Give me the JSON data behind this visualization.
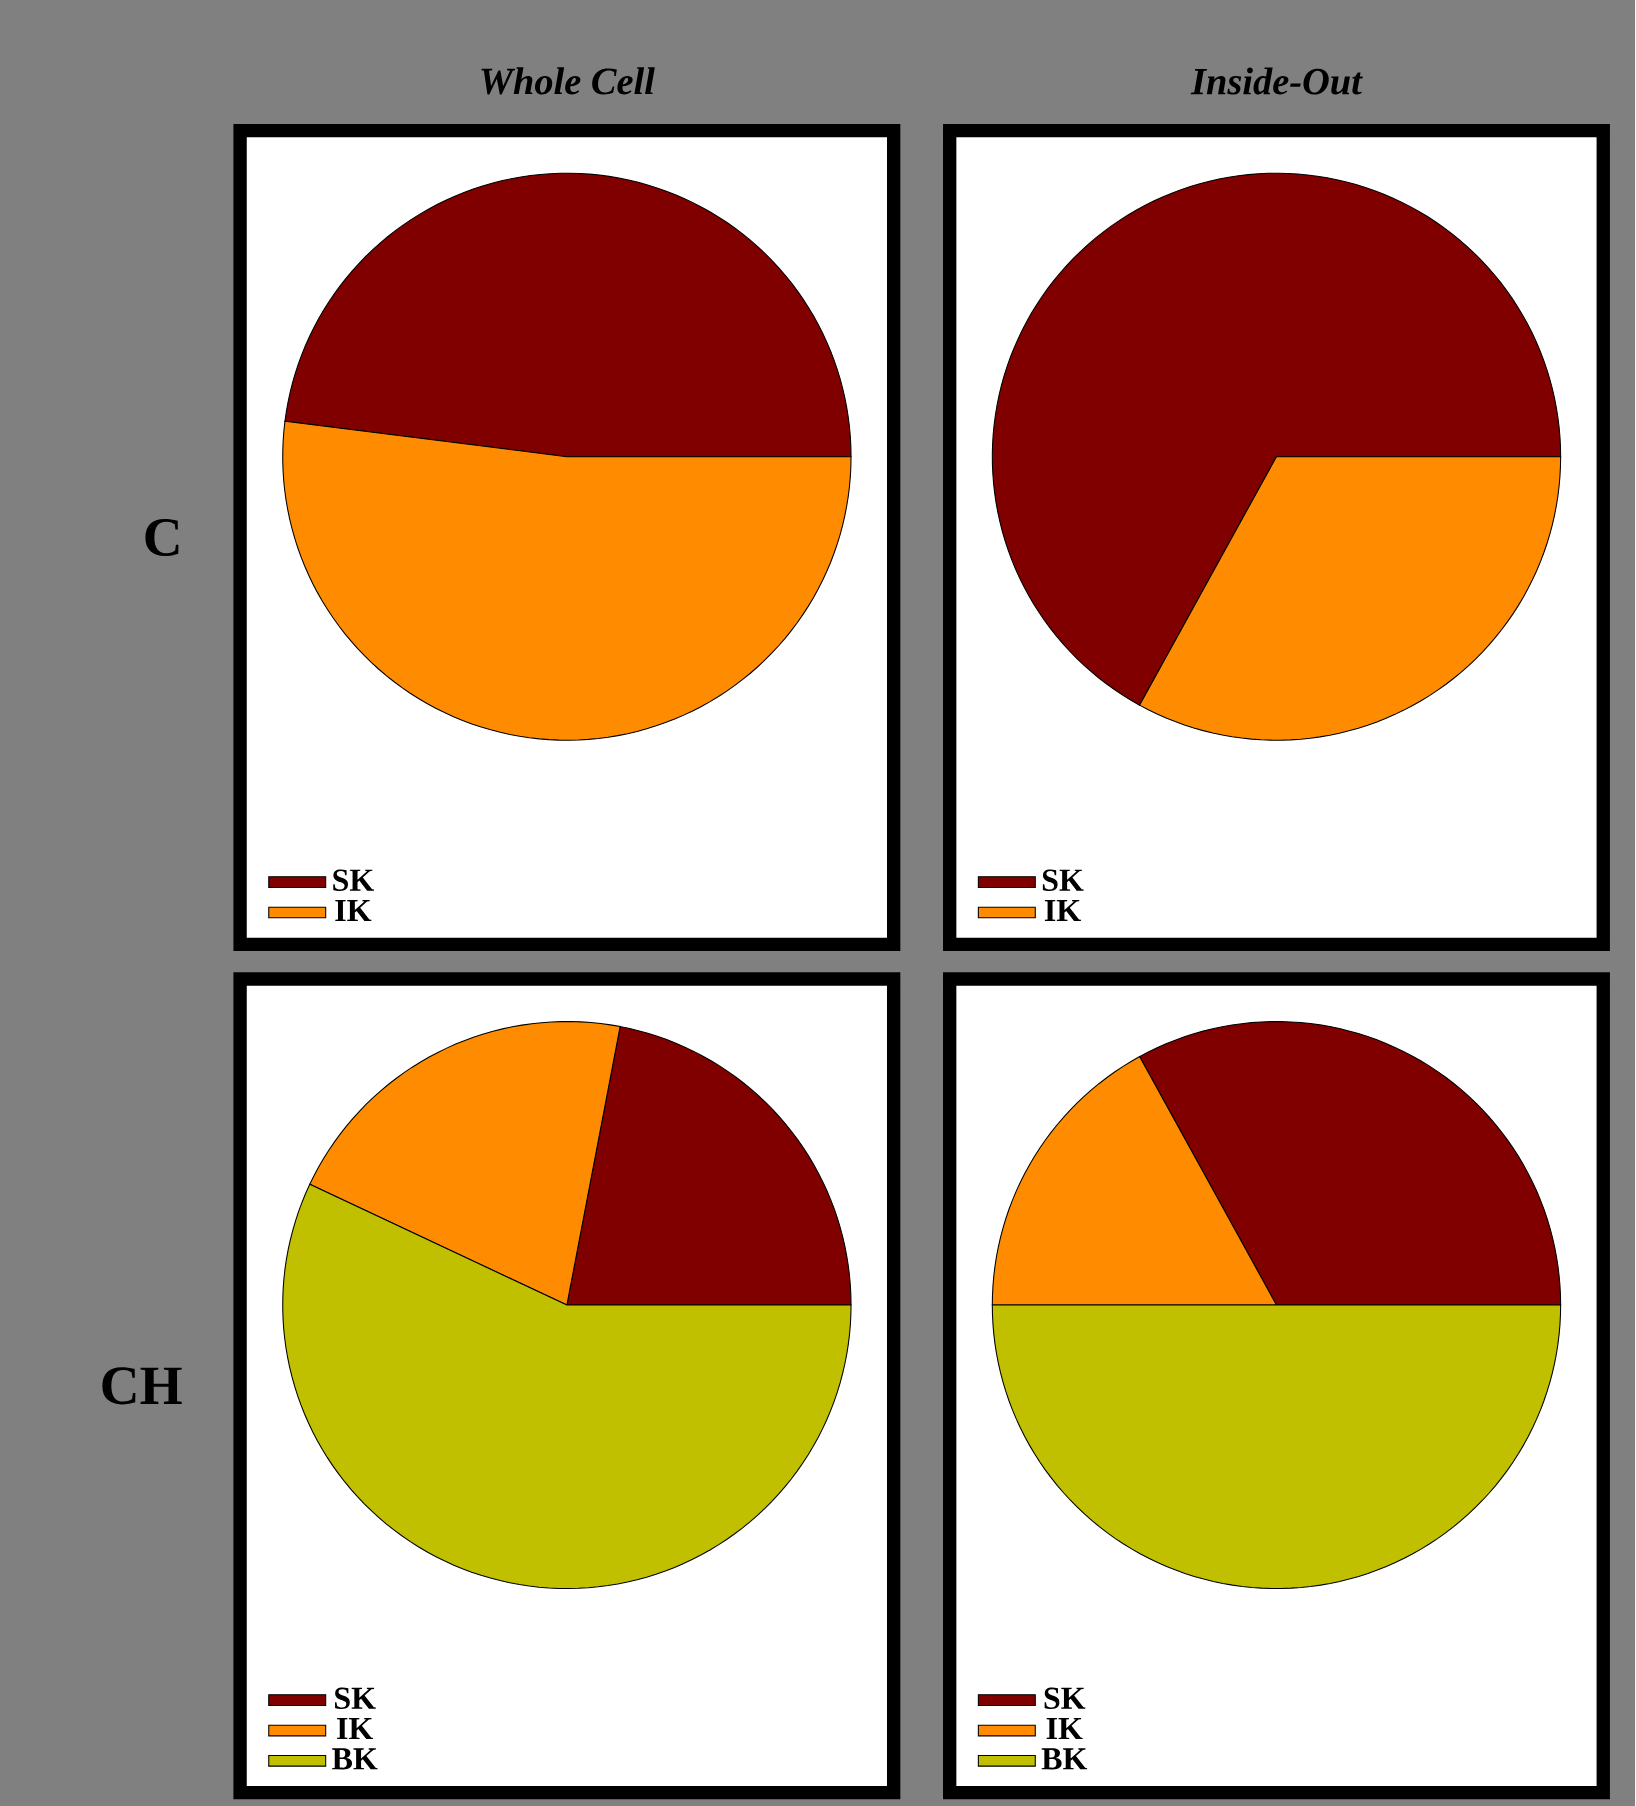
{
  "chart_data": [
    {
      "type": "pie",
      "title": "Whole Cell",
      "ylabel": "C",
      "categories": [
        "SK",
        "IK"
      ],
      "values": [
        48,
        52
      ],
      "colors": [
        "#800000",
        "#ff8c00"
      ],
      "legend": "bottom left"
    },
    {
      "type": "pie",
      "title": "Inside-Out",
      "categories": [
        "SK",
        "IK"
      ],
      "values": [
        67,
        33
      ],
      "colors": [
        "#800000",
        "#ff8c00"
      ],
      "legend": "bottom left"
    },
    {
      "type": "pie",
      "ylabel": "CH",
      "categories": [
        "SK",
        "IK",
        "BK"
      ],
      "values": [
        22,
        21,
        57
      ],
      "colors": [
        "#800000",
        "#ff8c00",
        "#c0c000"
      ],
      "legend": "bottom left"
    },
    {
      "type": "pie",
      "categories": [
        "SK",
        "IK",
        "BK"
      ],
      "values": [
        33,
        17,
        50
      ],
      "colors": [
        "#800000",
        "#ff8c00",
        "#c0c000"
      ],
      "legend": "bottom left"
    }
  ]
}
